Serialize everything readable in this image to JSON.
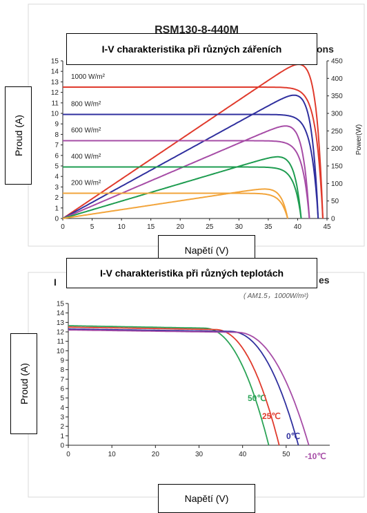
{
  "chart_data": [
    {
      "type": "line",
      "title": "RSM130-8-440M",
      "title_fragment_right": "ons",
      "overlay_title": "I-V charakteristika při různých zářeních",
      "xlabel": "Napětí (V)",
      "ylabel": "Proud (A)",
      "y2label": "Power(W)",
      "xlim": [
        0,
        45
      ],
      "ylim": [
        0,
        15
      ],
      "y2lim": [
        0,
        450
      ],
      "x_ticks": [
        0,
        5,
        10,
        15,
        20,
        25,
        30,
        35,
        40,
        45
      ],
      "y_ticks": [
        0,
        1,
        2,
        3,
        4,
        5,
        6,
        7,
        8,
        9,
        10,
        11,
        12,
        13,
        14,
        15
      ],
      "y2_ticks": [
        0,
        50,
        100,
        150,
        200,
        250,
        300,
        350,
        400,
        450
      ],
      "grid": false,
      "series": [
        {
          "name": "1000 W/m²",
          "color": "#e03a2c",
          "isc": 12.5,
          "voc": 44.3,
          "vmp": 36.5,
          "imp": 12.0,
          "pmax": 440
        },
        {
          "name": "800 W/m²",
          "color": "#2f2f9e",
          "isc": 9.9,
          "voc": 43.5,
          "vmp": 35.8,
          "imp": 9.8,
          "pmax": 352
        },
        {
          "name": "600 W/m²",
          "color": "#a64ca6",
          "isc": 7.4,
          "voc": 42.0,
          "vmp": 35.5,
          "imp": 7.3,
          "pmax": 264
        },
        {
          "name": "400 W/m²",
          "color": "#1e9c50",
          "isc": 4.9,
          "voc": 40.6,
          "vmp": 35.5,
          "imp": 4.8,
          "pmax": 176
        },
        {
          "name": "200 W/m²",
          "color": "#f2a43a",
          "isc": 2.4,
          "voc": 38.3,
          "vmp": 35.0,
          "imp": 2.3,
          "pmax": 84
        }
      ]
    },
    {
      "type": "line",
      "title_fragment_left": "I",
      "title_fragment_right": "es",
      "subtitle": "( AM1.5，1000W/m²)",
      "overlay_title": "I-V charakteristika při různých teplotách",
      "xlabel": "Napětí (V)",
      "ylabel": "Proud (A)",
      "xlim": [
        0,
        60
      ],
      "ylim": [
        0,
        15
      ],
      "x_ticks": [
        0,
        10,
        20,
        30,
        40,
        50
      ],
      "y_ticks": [
        0,
        1,
        2,
        3,
        4,
        5,
        6,
        7,
        8,
        9,
        10,
        11,
        12,
        13,
        14,
        15
      ],
      "grid": false,
      "series": [
        {
          "name": "50℃",
          "color": "#2aa356",
          "isc": 12.65,
          "voc": 46.0,
          "knee": 31.0
        },
        {
          "name": "25℃",
          "color": "#e03a2c",
          "isc": 12.5,
          "voc": 48.4,
          "knee": 33.5
        },
        {
          "name": "0℃",
          "color": "#2f2f9e",
          "isc": 12.3,
          "voc": 52.8,
          "knee": 37.0
        },
        {
          "name": "-10℃",
          "color": "#a64ca6",
          "isc": 12.2,
          "voc": 55.2,
          "knee": 38.5
        }
      ]
    }
  ]
}
